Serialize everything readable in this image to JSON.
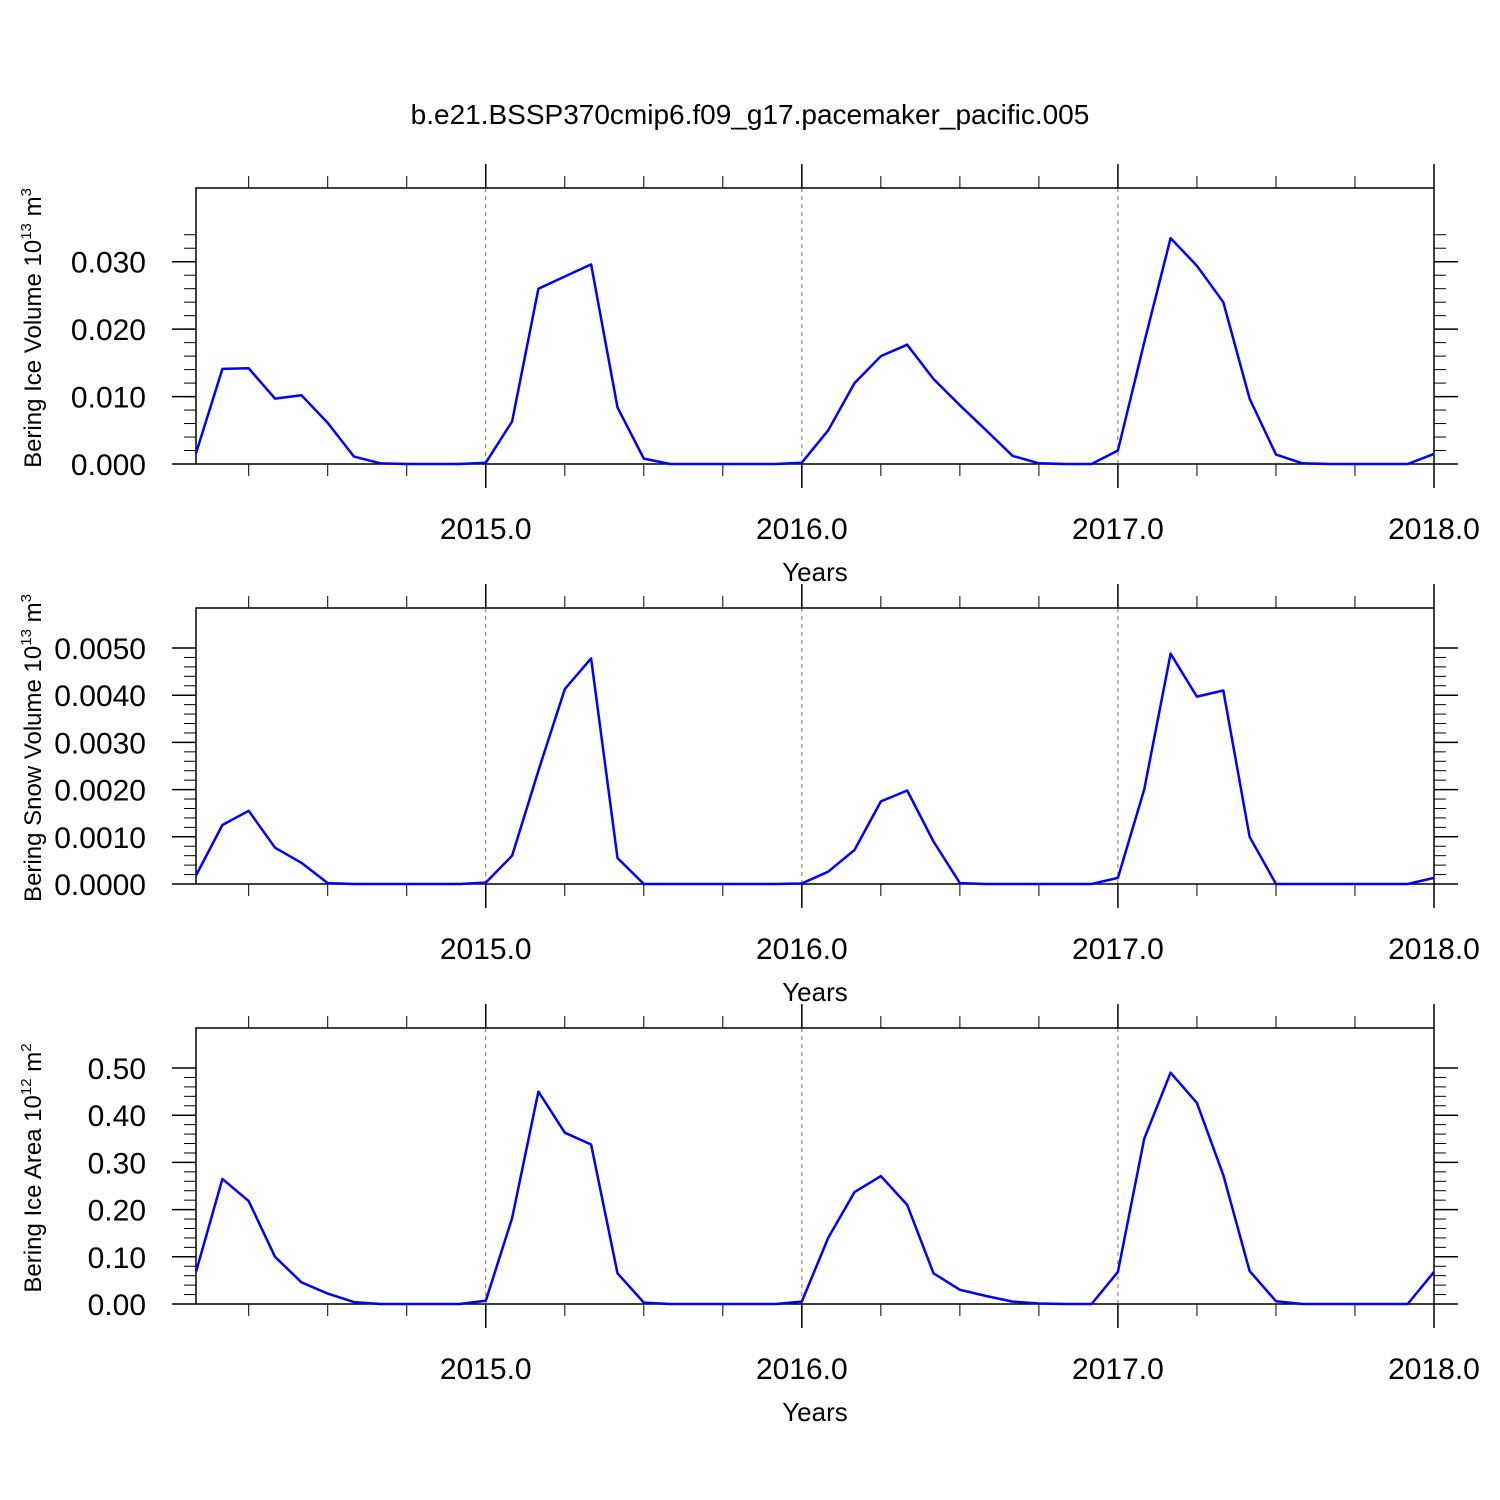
{
  "title": "b.e21.BSSP370cmip6.f09_g17.pacemaker_pacific.005",
  "colors": {
    "line": "#0000ff",
    "axis": "#000000",
    "gridline": "#777777"
  },
  "chart_data": [
    {
      "type": "line",
      "ylabel": {
        "text": "Bering Ice Volume 10",
        "exp": "13",
        "unit": "m",
        "unit_exp": "3"
      },
      "xlabel": "Years",
      "xlim": [
        2014.0833,
        2018.0
      ],
      "ylim": [
        0.0,
        0.035
      ],
      "yticks": [
        0.0,
        0.01,
        0.02,
        0.03
      ],
      "ytick_labels": [
        "0.000",
        "0.010",
        "0.020",
        "0.030"
      ],
      "xticks": [
        2015.0,
        2016.0,
        2017.0,
        2018.0
      ],
      "xtick_labels": [
        "2015.0",
        "2016.0",
        "2017.0",
        "2018.0"
      ],
      "gridlines_x": [
        2015.0,
        2016.0,
        2017.0
      ],
      "x": [
        2014.0833,
        2014.1667,
        2014.25,
        2014.3333,
        2014.4167,
        2014.5,
        2014.5833,
        2014.6667,
        2014.75,
        2014.8333,
        2014.9167,
        2015.0,
        2015.0833,
        2015.1667,
        2015.25,
        2015.3333,
        2015.4167,
        2015.5,
        2015.5833,
        2015.6667,
        2015.75,
        2015.8333,
        2015.9167,
        2016.0,
        2016.0833,
        2016.1667,
        2016.25,
        2016.3333,
        2016.4167,
        2016.5,
        2016.5833,
        2016.6667,
        2016.75,
        2016.8333,
        2016.9167,
        2017.0,
        2017.0833,
        2017.1667,
        2017.25,
        2017.3333,
        2017.4167,
        2017.5,
        2017.5833,
        2017.6667,
        2017.75,
        2017.8333,
        2017.9167,
        2018.0
      ],
      "series": [
        {
          "values": [
            0.0016,
            0.0141,
            0.0142,
            0.0097,
            0.0102,
            0.0061,
            0.0011,
            0.0001,
            0.0,
            0.0,
            0.0,
            0.0002,
            0.0063,
            0.026,
            0.0278,
            0.0296,
            0.0084,
            0.0008,
            0.0,
            0.0,
            0.0,
            0.0,
            0.0,
            0.0002,
            0.005,
            0.012,
            0.016,
            0.0177,
            0.0126,
            0.0087,
            0.005,
            0.0012,
            0.0001,
            0.0,
            0.0,
            0.002,
            0.018,
            0.0335,
            0.0294,
            0.024,
            0.0097,
            0.0014,
            0.0001,
            0.0,
            0.0,
            0.0,
            0.0,
            0.0015
          ]
        }
      ]
    },
    {
      "type": "line",
      "ylabel": {
        "text": "Bering Snow Volume 10",
        "exp": "13",
        "unit": "m",
        "unit_exp": "3"
      },
      "xlabel": "Years",
      "xlim": [
        2014.0833,
        2018.0
      ],
      "ylim": [
        0.0,
        0.005
      ],
      "yticks": [
        0.0,
        0.001,
        0.002,
        0.003,
        0.004,
        0.005
      ],
      "ytick_labels": [
        "0.0000",
        "0.0010",
        "0.0020",
        "0.0030",
        "0.0040",
        "0.0050"
      ],
      "xticks": [
        2015.0,
        2016.0,
        2017.0,
        2018.0
      ],
      "xtick_labels": [
        "2015.0",
        "2016.0",
        "2017.0",
        "2018.0"
      ],
      "gridlines_x": [
        2015.0,
        2016.0,
        2017.0
      ],
      "x": [
        2014.0833,
        2014.1667,
        2014.25,
        2014.3333,
        2014.4167,
        2014.5,
        2014.5833,
        2014.6667,
        2014.75,
        2014.8333,
        2014.9167,
        2015.0,
        2015.0833,
        2015.1667,
        2015.25,
        2015.3333,
        2015.4167,
        2015.5,
        2015.5833,
        2015.6667,
        2015.75,
        2015.8333,
        2015.9167,
        2016.0,
        2016.0833,
        2016.1667,
        2016.25,
        2016.3333,
        2016.4167,
        2016.5,
        2016.5833,
        2016.6667,
        2016.75,
        2016.8333,
        2016.9167,
        2017.0,
        2017.0833,
        2017.1667,
        2017.25,
        2017.3333,
        2017.4167,
        2017.5,
        2017.5833,
        2017.6667,
        2017.75,
        2017.8333,
        2017.9167,
        2018.0
      ],
      "series": [
        {
          "values": [
            0.00018,
            0.00125,
            0.00155,
            0.00077,
            0.00045,
            2e-05,
            0.0,
            0.0,
            0.0,
            0.0,
            0.0,
            3e-05,
            0.0006,
            0.0024,
            0.00413,
            0.00478,
            0.00055,
            0.0,
            0.0,
            0.0,
            0.0,
            0.0,
            0.0,
            1e-05,
            0.00026,
            0.00072,
            0.00175,
            0.00198,
            0.0009,
            2e-05,
            0.0,
            0.0,
            0.0,
            0.0,
            0.0,
            0.00013,
            0.002,
            0.00488,
            0.00397,
            0.0041,
            0.001,
            0.0,
            0.0,
            0.0,
            0.0,
            0.0,
            0.0,
            0.00013
          ]
        }
      ]
    },
    {
      "type": "line",
      "ylabel": {
        "text": "Bering Ice Area 10",
        "exp": "12",
        "unit": "m",
        "unit_exp": "2"
      },
      "xlabel": "Years",
      "xlim": [
        2014.0833,
        2018.0
      ],
      "ylim": [
        0.0,
        0.5
      ],
      "yticks": [
        0.0,
        0.1,
        0.2,
        0.3,
        0.4,
        0.5
      ],
      "ytick_labels": [
        "0.00",
        "0.10",
        "0.20",
        "0.30",
        "0.40",
        "0.50"
      ],
      "xticks": [
        2015.0,
        2016.0,
        2017.0,
        2018.0
      ],
      "xtick_labels": [
        "2015.0",
        "2016.0",
        "2017.0",
        "2018.0"
      ],
      "gridlines_x": [
        2015.0,
        2016.0,
        2017.0
      ],
      "x": [
        2014.0833,
        2014.1667,
        2014.25,
        2014.3333,
        2014.4167,
        2014.5,
        2014.5833,
        2014.6667,
        2014.75,
        2014.8333,
        2014.9167,
        2015.0,
        2015.0833,
        2015.1667,
        2015.25,
        2015.3333,
        2015.4167,
        2015.5,
        2015.5833,
        2015.6667,
        2015.75,
        2015.8333,
        2015.9167,
        2016.0,
        2016.0833,
        2016.1667,
        2016.25,
        2016.3333,
        2016.4167,
        2016.5,
        2016.5833,
        2016.6667,
        2016.75,
        2016.8333,
        2016.9167,
        2017.0,
        2017.0833,
        2017.1667,
        2017.25,
        2017.3333,
        2017.4167,
        2017.5,
        2017.5833,
        2017.6667,
        2017.75,
        2017.8333,
        2017.9167,
        2018.0
      ],
      "series": [
        {
          "values": [
            0.068,
            0.265,
            0.218,
            0.1,
            0.046,
            0.022,
            0.004,
            0.0,
            0.0,
            0.0,
            0.0,
            0.007,
            0.182,
            0.45,
            0.363,
            0.338,
            0.065,
            0.003,
            0.0,
            0.0,
            0.0,
            0.0,
            0.0,
            0.005,
            0.14,
            0.237,
            0.271,
            0.21,
            0.065,
            0.03,
            0.017,
            0.005,
            0.001,
            0.0,
            0.0,
            0.068,
            0.35,
            0.49,
            0.426,
            0.273,
            0.07,
            0.006,
            0.0,
            0.0,
            0.0,
            0.0,
            0.0,
            0.068
          ]
        }
      ]
    }
  ]
}
